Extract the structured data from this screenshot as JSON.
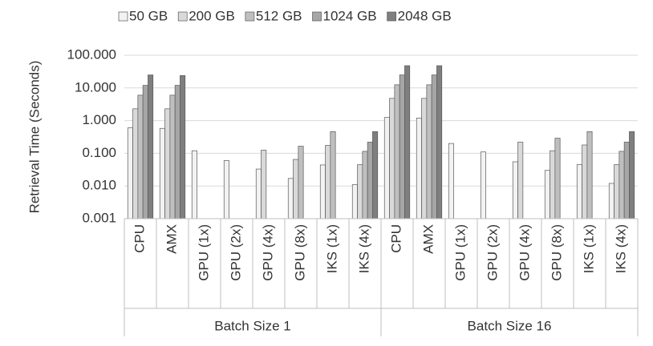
{
  "chart_data": {
    "type": "bar",
    "y_label": "Retrieval Time (Seconds)",
    "log_y": true,
    "grid": true,
    "legend": "top",
    "categories": [
      "CPU",
      "AMX",
      "GPU (1x)",
      "GPU (2x)",
      "GPU (4x)",
      "GPU (8x)",
      "IKS (1x)",
      "IKS (4x)",
      "CPU",
      "AMX",
      "GPU (1x)",
      "GPU (2x)",
      "GPU (4x)",
      "GPU (8x)",
      "IKS (1x)",
      "IKS (4x)"
    ],
    "group_labels": [
      "Batch Size 1",
      "Batch Size 16"
    ],
    "ylim": [
      0.001,
      100
    ],
    "yticks": [
      0.001,
      {
        "value": 0.01,
        "label": "0.010"
      },
      {
        "value": 0.1,
        "label": "0.100"
      },
      {
        "value": 1,
        "label": "1.000"
      },
      {
        "value": 10,
        "label": "10.000"
      },
      {
        "value": 100,
        "label": "100.000"
      }
    ],
    "series": [
      {
        "name": "50 GB",
        "color": "#f2f2f2",
        "values": [
          0.6,
          0.58,
          0.12,
          0.06,
          0.033,
          0.017,
          0.044,
          0.011,
          1.25,
          1.2,
          0.2,
          0.11,
          0.055,
          0.03,
          0.045,
          0.012
        ]
      },
      {
        "name": "200 GB",
        "color": "#d9d9d9",
        "values": [
          2.3,
          2.3,
          null,
          null,
          0.125,
          0.065,
          0.175,
          0.045,
          4.8,
          4.8,
          null,
          null,
          0.22,
          0.12,
          0.18,
          0.045
        ]
      },
      {
        "name": "512 GB",
        "color": "#bfbfbf",
        "values": [
          6,
          6,
          null,
          null,
          null,
          0.165,
          0.46,
          0.115,
          12.5,
          12.5,
          null,
          null,
          null,
          0.29,
          0.46,
          0.115
        ]
      },
      {
        "name": "1024 GB",
        "color": "#a6a6a6",
        "values": [
          12,
          12,
          null,
          null,
          null,
          null,
          null,
          0.22,
          25,
          25,
          null,
          null,
          null,
          null,
          null,
          0.22
        ]
      },
      {
        "name": "2048 GB",
        "color": "#7f7f7f",
        "values": [
          25,
          24,
          null,
          null,
          null,
          null,
          null,
          0.46,
          48,
          48,
          null,
          null,
          null,
          null,
          null,
          0.46
        ]
      }
    ]
  }
}
